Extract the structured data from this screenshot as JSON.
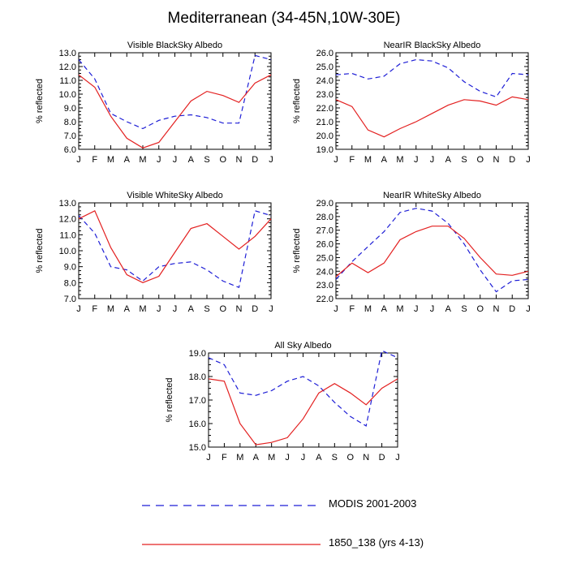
{
  "title": "Mediterranean (34-45N,10W-30E)",
  "legend": [
    {
      "label": "MODIS 2001-2003",
      "color": "#1f1fd6",
      "style": "dashed"
    },
    {
      "label": "1850_138 (yrs 4-13)",
      "color": "#e32020",
      "style": "solid"
    }
  ],
  "chart_data": [
    {
      "type": "line",
      "title": "Visible BlackSky Albedo",
      "ylabel": "% reflected",
      "x": [
        "J",
        "F",
        "M",
        "A",
        "M",
        "J",
        "J",
        "A",
        "S",
        "O",
        "N",
        "D",
        "J"
      ],
      "ylim": [
        6.0,
        13.0
      ],
      "yticks": [
        6.0,
        7.0,
        8.0,
        9.0,
        10.0,
        11.0,
        12.0,
        13.0
      ],
      "series": [
        {
          "name": "MODIS 2001-2003",
          "values": [
            12.5,
            11.1,
            8.6,
            8.0,
            7.5,
            8.1,
            8.4,
            8.5,
            8.3,
            7.9,
            7.9,
            12.8,
            12.5
          ]
        },
        {
          "name": "1850_138 (yrs 4-13)",
          "values": [
            11.4,
            10.5,
            8.4,
            6.8,
            6.1,
            6.5,
            8.0,
            9.5,
            10.2,
            9.9,
            9.4,
            10.8,
            11.4
          ]
        }
      ]
    },
    {
      "type": "line",
      "title": "NearIR BlackSky Albedo",
      "ylabel": "% reflected",
      "x": [
        "J",
        "F",
        "M",
        "A",
        "M",
        "J",
        "J",
        "A",
        "S",
        "O",
        "N",
        "D",
        "J"
      ],
      "ylim": [
        19.0,
        26.0
      ],
      "yticks": [
        19.0,
        20.0,
        21.0,
        22.0,
        23.0,
        24.0,
        25.0,
        26.0
      ],
      "series": [
        {
          "name": "MODIS 2001-2003",
          "values": [
            24.4,
            24.5,
            24.1,
            24.3,
            25.2,
            25.5,
            25.4,
            24.9,
            23.9,
            23.2,
            22.8,
            24.5,
            24.4
          ]
        },
        {
          "name": "1850_138 (yrs 4-13)",
          "values": [
            22.6,
            22.1,
            20.4,
            19.9,
            20.5,
            21.0,
            21.6,
            22.2,
            22.6,
            22.5,
            22.2,
            22.8,
            22.6
          ]
        }
      ]
    },
    {
      "type": "line",
      "title": "Visible WhiteSky Albedo",
      "ylabel": "% reflected",
      "x": [
        "J",
        "F",
        "M",
        "A",
        "M",
        "J",
        "J",
        "A",
        "S",
        "O",
        "N",
        "D",
        "J"
      ],
      "ylim": [
        7.0,
        13.0
      ],
      "yticks": [
        7.0,
        8.0,
        9.0,
        10.0,
        11.0,
        12.0,
        13.0
      ],
      "series": [
        {
          "name": "MODIS 2001-2003",
          "values": [
            12.2,
            11.1,
            9.0,
            8.8,
            8.1,
            9.0,
            9.2,
            9.3,
            8.8,
            8.1,
            7.7,
            12.5,
            12.2
          ]
        },
        {
          "name": "1850_138 (yrs 4-13)",
          "values": [
            12.0,
            12.5,
            10.2,
            8.5,
            8.0,
            8.4,
            9.9,
            11.4,
            11.7,
            10.9,
            10.1,
            10.9,
            12.0
          ]
        }
      ]
    },
    {
      "type": "line",
      "title": "NearIR WhiteSky Albedo",
      "ylabel": "% reflected",
      "x": [
        "J",
        "F",
        "M",
        "A",
        "M",
        "J",
        "J",
        "A",
        "S",
        "O",
        "N",
        "D",
        "J"
      ],
      "ylim": [
        22.0,
        29.0
      ],
      "yticks": [
        22.0,
        23.0,
        24.0,
        25.0,
        26.0,
        27.0,
        28.0,
        29.0
      ],
      "series": [
        {
          "name": "MODIS 2001-2003",
          "values": [
            23.4,
            24.7,
            25.8,
            26.9,
            28.3,
            28.6,
            28.4,
            27.5,
            26.0,
            24.1,
            22.5,
            23.3,
            23.4
          ]
        },
        {
          "name": "1850_138 (yrs 4-13)",
          "values": [
            23.6,
            24.6,
            23.9,
            24.6,
            26.3,
            26.9,
            27.3,
            27.3,
            26.4,
            25.0,
            23.8,
            23.7,
            24.0
          ]
        }
      ]
    },
    {
      "type": "line",
      "title": "All Sky Albedo",
      "ylabel": "% reflected",
      "x": [
        "J",
        "F",
        "M",
        "A",
        "M",
        "J",
        "J",
        "A",
        "S",
        "O",
        "N",
        "D",
        "J"
      ],
      "ylim": [
        15.0,
        19.0
      ],
      "yticks": [
        15.0,
        16.0,
        17.0,
        18.0,
        19.0
      ],
      "series": [
        {
          "name": "MODIS 2001-2003",
          "values": [
            18.8,
            18.5,
            17.3,
            17.2,
            17.4,
            17.8,
            18.0,
            17.6,
            16.9,
            16.3,
            15.9,
            19.1,
            18.8
          ]
        },
        {
          "name": "1850_138 (yrs 4-13)",
          "values": [
            17.9,
            17.8,
            16.0,
            15.1,
            15.2,
            15.4,
            16.2,
            17.3,
            17.7,
            17.3,
            16.8,
            17.5,
            17.9
          ]
        }
      ]
    }
  ]
}
